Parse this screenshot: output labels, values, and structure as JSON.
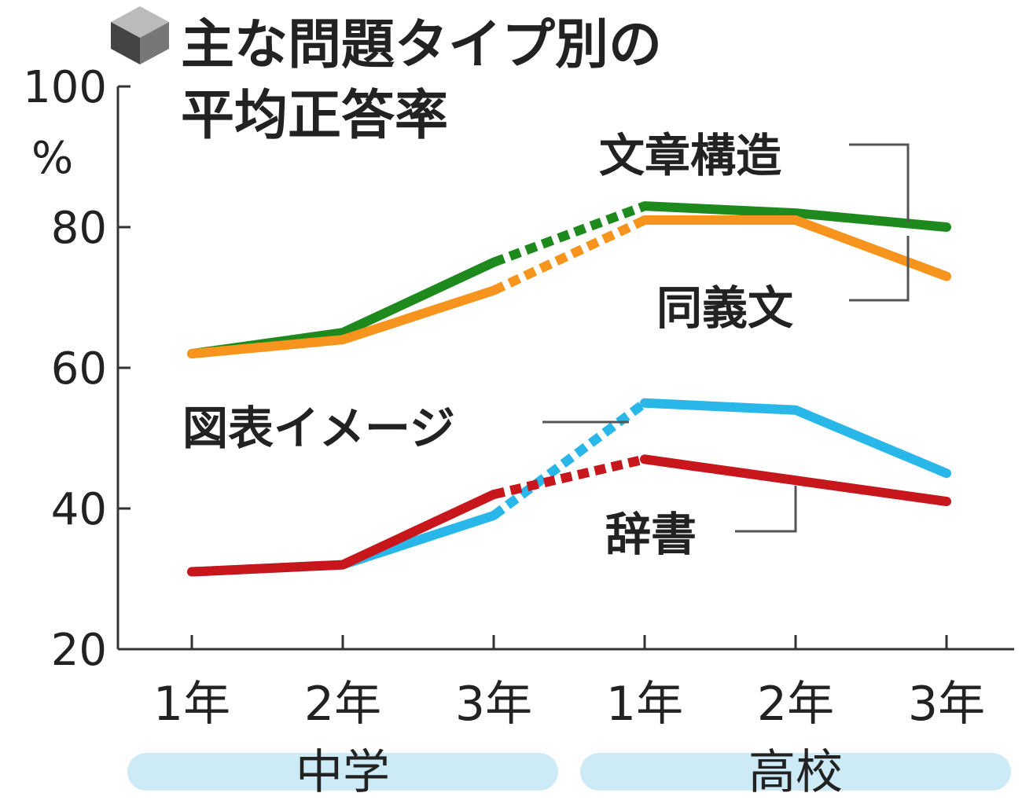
{
  "chart_data": {
    "type": "line",
    "title_line1": "主な問題タイプ別の",
    "title_line2": "平均正答率",
    "y_unit": "%",
    "ylim": [
      20,
      100
    ],
    "y_ticks": [
      "20",
      "40",
      "60",
      "80",
      "100"
    ],
    "categories": [
      "1年",
      "2年",
      "3年",
      "1年",
      "2年",
      "3年"
    ],
    "groups": [
      {
        "label": "中学",
        "from": 0,
        "to": 2
      },
      {
        "label": "高校",
        "from": 3,
        "to": 5
      }
    ],
    "dashed_segment_between": [
      2,
      3
    ],
    "series": [
      {
        "name": "文章構造",
        "values": [
          62,
          65,
          75,
          83,
          82,
          80
        ],
        "color": "#1e8a1e"
      },
      {
        "name": "同義文",
        "values": [
          62,
          64,
          71,
          81,
          81,
          73
        ],
        "color": "#f7941d"
      },
      {
        "name": "図表イメージ",
        "values": [
          31,
          32,
          39,
          55,
          54,
          45
        ],
        "color": "#29b6e8"
      },
      {
        "name": "辞書",
        "values": [
          31,
          32,
          42,
          47,
          44,
          41
        ],
        "color": "#c8161d"
      }
    ],
    "colors": {
      "axis": "#333333",
      "group_band": "#cdeaf7",
      "leader": "#555555",
      "icon": "#555555"
    }
  }
}
